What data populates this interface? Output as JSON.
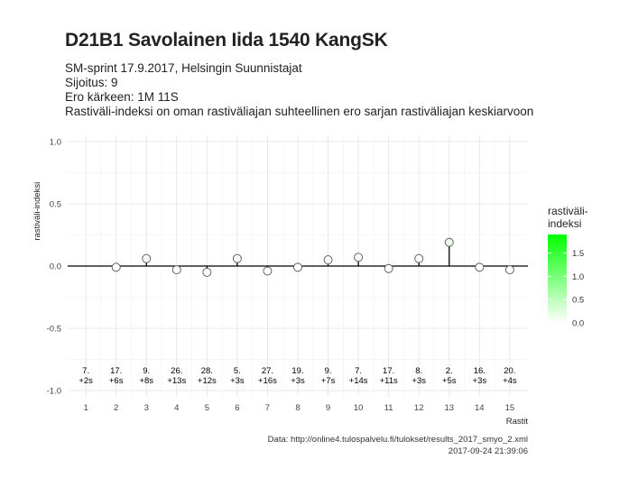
{
  "header": {
    "title": "D21B1 Savolainen Iida 1540 KangSK",
    "subtitle_lines": [
      "SM-sprint 17.9.2017, Helsingin Suunnistajat",
      "Sijoitus: 9",
      "Ero kärkeen: 1M 11S",
      "Rastiväli-indeksi on oman rastiväliajan suhteellinen ero sarjan rastiväliajan keskiarvoon"
    ]
  },
  "caption": {
    "source": "Data: http://online4.tulospalvelu.fi/tulokset/results_2017_smyo_2.xml",
    "timestamp": "2017-09-24 21:39:06"
  },
  "colors": {
    "gradient_low": "#ffffff",
    "gradient_high": "#00ff00",
    "point_stroke": "#555555",
    "grid": "#e6e6e6"
  },
  "chart_data": {
    "type": "scatter",
    "xlabel": "Rastit",
    "ylabel": "rastiväli-indeksi",
    "ylim": [
      -1.0,
      1.0
    ],
    "yticks": [
      -1.0,
      -0.5,
      0.0,
      0.5,
      1.0
    ],
    "ytick_labels": [
      "-1.0",
      "-0.5",
      "0.0",
      "0.5",
      "1.0"
    ],
    "x": [
      1,
      2,
      3,
      4,
      5,
      6,
      7,
      8,
      9,
      10,
      11,
      12,
      13,
      14,
      15
    ],
    "xtick_labels": [
      "1",
      "2",
      "3",
      "4",
      "5",
      "6",
      "7",
      "8",
      "9",
      "10",
      "11",
      "12",
      "13",
      "14",
      "15"
    ],
    "values": [
      null,
      -0.01,
      0.06,
      -0.03,
      -0.05,
      0.06,
      -0.04,
      -0.01,
      0.05,
      0.07,
      -0.02,
      0.06,
      0.19,
      -0.01,
      -0.03
    ],
    "rank_labels": [
      "7.",
      "17.",
      "9.",
      "26.",
      "28.",
      "5.",
      "27.",
      "19.",
      "9.",
      "7.",
      "17.",
      "8.",
      "2.",
      "16.",
      "20."
    ],
    "diff_labels": [
      "+2s",
      "+6s",
      "+8s",
      "+13s",
      "+12s",
      "+3s",
      "+16s",
      "+3s",
      "+7s",
      "+14s",
      "+11s",
      "+3s",
      "+5s",
      "+3s",
      "+4s"
    ],
    "grid": true,
    "legend": {
      "title_lines": [
        "rastiväli-",
        "indeksi"
      ],
      "placement": "right",
      "range": [
        0.0,
        1.9
      ],
      "ticks": [
        0.0,
        0.5,
        1.0,
        1.5
      ],
      "tick_labels": [
        "0.0",
        "0.5",
        "1.0",
        "1.5"
      ]
    }
  }
}
